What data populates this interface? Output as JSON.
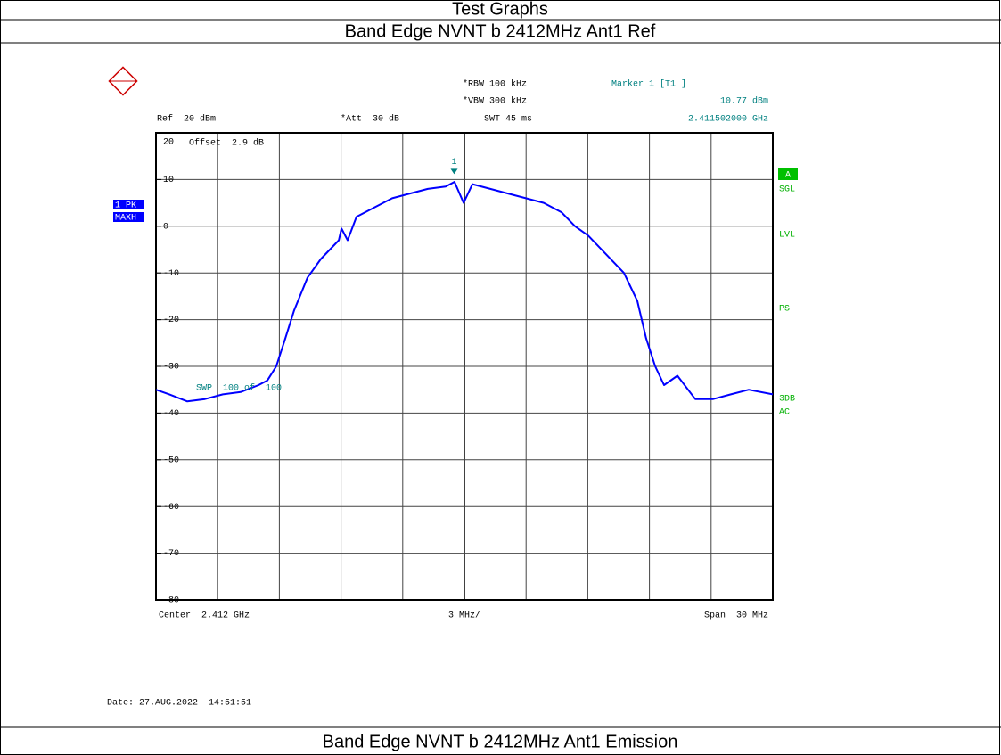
{
  "header": {
    "title": "Test Graphs",
    "subtitle": "Band Edge NVNT b 2412MHz Ant1 Ref"
  },
  "footer": {
    "title": "Band Edge NVNT b 2412MHz Ant1 Emission"
  },
  "chart_data": {
    "type": "line",
    "annotations": {
      "ref": "Ref  20 dBm",
      "att": "*Att  30 dB",
      "rbw": "*RBW 100 kHz",
      "vbw": "*VBW 300 kHz",
      "swt": "SWT 45 ms",
      "marker_name": "Marker 1 [T1 ]",
      "marker_level": "10.77 dBm",
      "marker_freq": "2.411502000 GHz",
      "offset": "Offset  2.9 dB",
      "trace_mode": "1 PK",
      "trace_hold": "MAXH",
      "status_a": "A",
      "sgl": "SGL",
      "lvl": "LVL",
      "ps": "PS",
      "db3": "3DB",
      "ac": "AC",
      "sweep": "SWP  100 of  100",
      "center": "Center  2.412 GHz",
      "per_div": "3 MHz/",
      "span": "Span  30 MHz",
      "date": "Date: 27.AUG.2022  14:51:51"
    },
    "marker": {
      "label": "1",
      "x": 2.411502,
      "value": 10.77
    },
    "x": [
      2.397,
      2.39765,
      2.39852,
      2.39938,
      2.40025,
      2.40112,
      2.40199,
      2.40242,
      2.40285,
      2.40329,
      2.40372,
      2.40437,
      2.40502,
      2.40589,
      2.40602,
      2.40632,
      2.40675,
      2.40762,
      2.40849,
      2.40935,
      2.41022,
      2.41109,
      2.41152,
      2.41196,
      2.41239,
      2.41326,
      2.41412,
      2.41499,
      2.41586,
      2.41672,
      2.41738,
      2.41802,
      2.41889,
      2.41976,
      2.42041,
      2.42084,
      2.42128,
      2.42171,
      2.42236,
      2.42323,
      2.4241,
      2.42496,
      2.42583,
      2.427
    ],
    "series": [
      {
        "name": "1 PK",
        "color": "#0000ff",
        "values": [
          -35,
          -36,
          -37.5,
          -37,
          -36,
          -35.5,
          -34,
          -33,
          -30,
          -24,
          -18,
          -11,
          -7,
          -3,
          -0.5,
          -3,
          2,
          4,
          6,
          7,
          8,
          8.5,
          9.5,
          5,
          9,
          8,
          7,
          6,
          5,
          3,
          0,
          -2,
          -6,
          -10,
          -16,
          -24,
          -30,
          -34,
          -32,
          -37,
          -37,
          -36,
          -35,
          -36
        ]
      }
    ],
    "xlim": [
      2.397,
      2.427
    ],
    "x_divisions": 10,
    "ylim": [
      -80,
      20
    ],
    "yticks": [
      20,
      10,
      0,
      -10,
      -20,
      -30,
      -40,
      -50,
      -60,
      -70,
      -80
    ],
    "grid": true
  }
}
